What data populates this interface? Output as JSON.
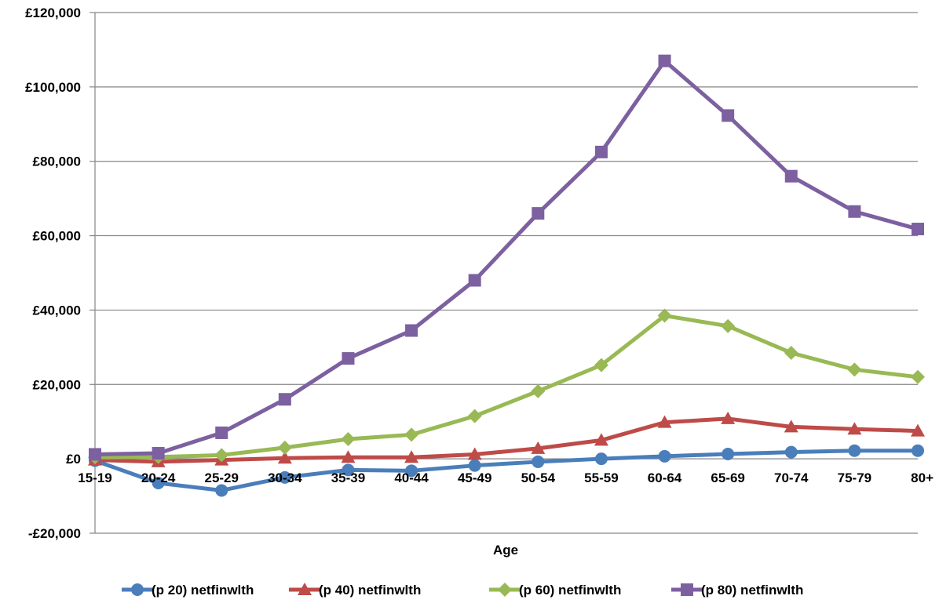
{
  "chart_data": {
    "type": "line",
    "title": "",
    "xlabel": "Age",
    "ylabel": "",
    "categories": [
      "15-19",
      "20-24",
      "25-29",
      "30-34",
      "35-39",
      "40-44",
      "45-49",
      "50-54",
      "55-59",
      "60-64",
      "65-69",
      "70-74",
      "75-79",
      "80+"
    ],
    "ylim": [
      -20000,
      120000
    ],
    "yticks": [
      -20000,
      0,
      20000,
      40000,
      60000,
      80000,
      100000,
      120000
    ],
    "ytick_labels": [
      "-£20,000",
      "£0",
      "£20,000",
      "£40,000",
      "£60,000",
      "£80,000",
      "£100,000",
      "£120,000"
    ],
    "grid": "horizontal",
    "legend_position": "bottom",
    "series": [
      {
        "name": "(p 20) netfinwlth",
        "color": "#4a7ebb",
        "marker": "circle",
        "values": [
          -500,
          -6500,
          -8500,
          -5000,
          -3000,
          -3200,
          -1800,
          -800,
          0,
          700,
          1300,
          1800,
          2200,
          2200
        ]
      },
      {
        "name": "(p 40) netfinwlth",
        "color": "#be4b48",
        "marker": "triangle",
        "values": [
          -300,
          -800,
          -300,
          200,
          400,
          400,
          1200,
          2800,
          5000,
          9800,
          10800,
          8600,
          8000,
          7500
        ]
      },
      {
        "name": "(p 60) netfinwlth",
        "color": "#98b954",
        "marker": "diamond",
        "values": [
          400,
          500,
          1000,
          3000,
          5300,
          6500,
          11500,
          18200,
          25200,
          38500,
          35700,
          28500,
          24000,
          22000
        ]
      },
      {
        "name": "(p 80) netfinwlth",
        "color": "#7d60a0",
        "marker": "square",
        "values": [
          1200,
          1500,
          7000,
          16000,
          27000,
          34500,
          48000,
          66000,
          82500,
          107000,
          92300,
          76000,
          66500,
          61800
        ]
      }
    ]
  }
}
